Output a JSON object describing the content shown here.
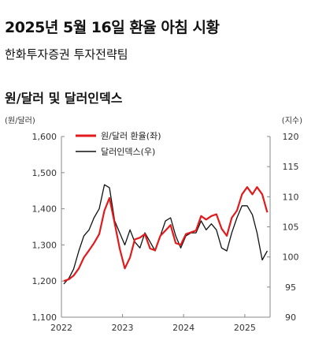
{
  "header": {
    "title": "2025년 5월 16일 환율 아침 시황",
    "subtitle": "한화투자증권 투자전략팀"
  },
  "colors": {
    "krw_usd": "#e31a1c",
    "dxy": "#111111",
    "axis": "#888888"
  },
  "chart_data": {
    "type": "line",
    "title": "원/달러 및 달러인덱스",
    "ylabel_left": "(원/달러)",
    "ylabel_right": "(지수)",
    "ylim_left": [
      1100,
      1600
    ],
    "ylim_right": [
      90,
      120
    ],
    "yticks_left": [
      "1,100",
      "1,200",
      "1,300",
      "1,400",
      "1,500",
      "1,600"
    ],
    "yticks_right": [
      "90",
      "95",
      "100",
      "105",
      "110",
      "115",
      "120"
    ],
    "xlim": [
      "2022-01-01",
      "2025-06-01"
    ],
    "xticks": [
      "2022",
      "2023",
      "2024",
      "2025"
    ],
    "legend_position": "top-left",
    "grid": false,
    "series": [
      {
        "name": "원/달러 환율(좌)",
        "axis": "left",
        "x": [
          "2022-01",
          "2022-02",
          "2022-03",
          "2022-04",
          "2022-05",
          "2022-06",
          "2022-07",
          "2022-08",
          "2022-09",
          "2022-10",
          "2022-11",
          "2022-12",
          "2023-01",
          "2023-02",
          "2023-03",
          "2023-04",
          "2023-05",
          "2023-06",
          "2023-07",
          "2023-08",
          "2023-09",
          "2023-10",
          "2023-11",
          "2023-12",
          "2024-01",
          "2024-02",
          "2024-03",
          "2024-04",
          "2024-05",
          "2024-06",
          "2024-07",
          "2024-08",
          "2024-09",
          "2024-10",
          "2024-11",
          "2024-12",
          "2025-01",
          "2025-02",
          "2025-03",
          "2025-04",
          "2025-05"
        ],
        "values": [
          1200,
          1205,
          1215,
          1235,
          1265,
          1285,
          1305,
          1330,
          1395,
          1430,
          1360,
          1290,
          1235,
          1265,
          1315,
          1320,
          1330,
          1290,
          1285,
          1325,
          1340,
          1355,
          1305,
          1300,
          1330,
          1335,
          1340,
          1380,
          1370,
          1380,
          1385,
          1345,
          1325,
          1375,
          1395,
          1440,
          1460,
          1440,
          1460,
          1440,
          1390
        ]
      },
      {
        "name": "달러인덱스(우)",
        "axis": "right",
        "x": [
          "2022-01",
          "2022-02",
          "2022-03",
          "2022-04",
          "2022-05",
          "2022-06",
          "2022-07",
          "2022-08",
          "2022-09",
          "2022-10",
          "2022-11",
          "2022-12",
          "2023-01",
          "2023-02",
          "2023-03",
          "2023-04",
          "2023-05",
          "2023-06",
          "2023-07",
          "2023-08",
          "2023-09",
          "2023-10",
          "2023-11",
          "2023-12",
          "2024-01",
          "2024-02",
          "2024-03",
          "2024-04",
          "2024-05",
          "2024-06",
          "2024-07",
          "2024-08",
          "2024-09",
          "2024-10",
          "2024-11",
          "2024-12",
          "2025-01",
          "2025-02",
          "2025-03",
          "2025-04",
          "2025-05"
        ],
        "values": [
          95.5,
          96.5,
          98.0,
          101.0,
          103.5,
          104.5,
          106.5,
          108.0,
          112.0,
          111.5,
          106.0,
          104.0,
          102.0,
          104.5,
          102.5,
          101.5,
          104.0,
          102.5,
          101.0,
          103.5,
          106.0,
          106.5,
          103.5,
          101.5,
          103.5,
          104.0,
          104.0,
          106.0,
          104.5,
          105.5,
          104.5,
          101.5,
          101.0,
          104.0,
          106.5,
          108.5,
          108.5,
          107.0,
          104.0,
          99.5,
          101.0
        ]
      }
    ]
  }
}
